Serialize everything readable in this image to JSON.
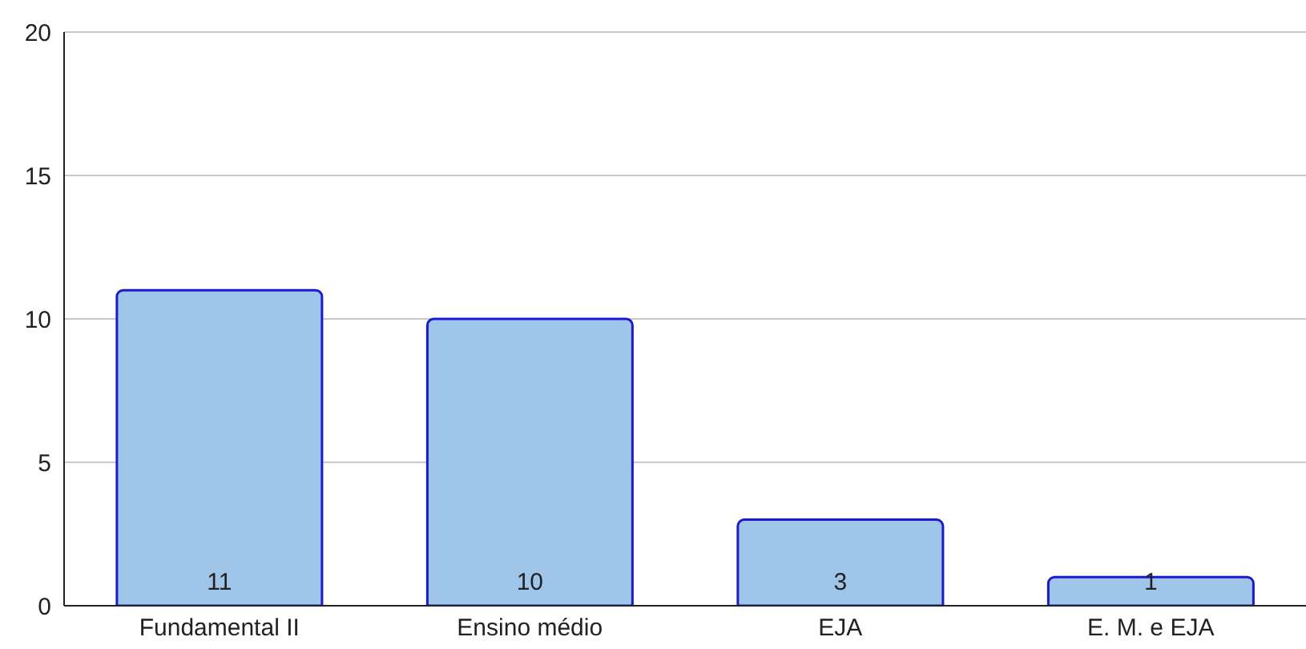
{
  "chart_data": {
    "type": "bar",
    "categories": [
      "Fundamental II",
      "Ensino médio",
      "EJA",
      "E. M. e EJA"
    ],
    "values": [
      11,
      10,
      3,
      1
    ],
    "color": "#9fc5e8",
    "ylim": [
      0,
      20
    ],
    "yticks": [
      0,
      5,
      10,
      15,
      20
    ],
    "grid": "y",
    "data_labels": true
  }
}
